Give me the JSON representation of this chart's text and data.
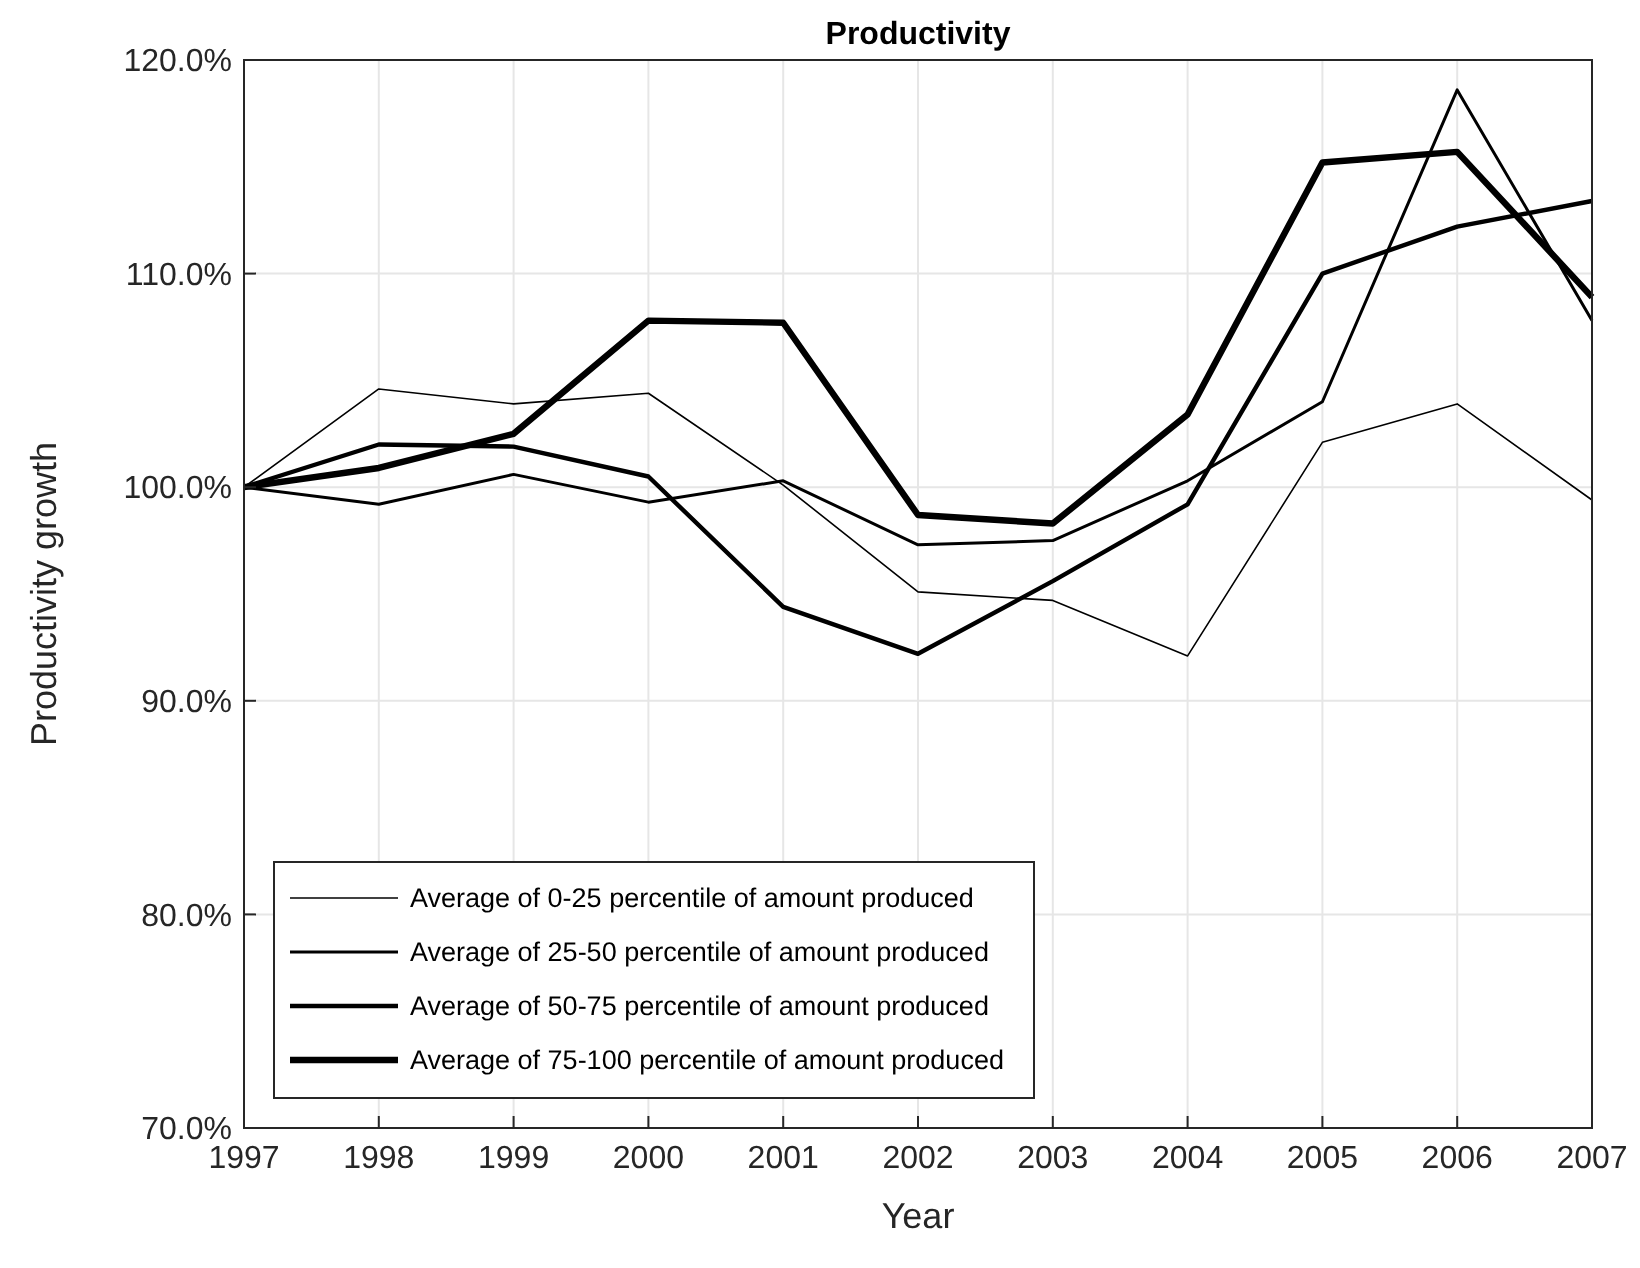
{
  "chart_data": {
    "type": "line",
    "title": "Productivity",
    "xlabel": "Year",
    "ylabel": "Productivity growth",
    "x": [
      1997,
      1998,
      1999,
      2000,
      2001,
      2002,
      2003,
      2004,
      2005,
      2006,
      2007
    ],
    "series": [
      {
        "name": "Average of 0-25 percentile of amount produced",
        "color": "#000000",
        "values": [
          100,
          104.6,
          103.9,
          104.4,
          100.1,
          95.1,
          94.7,
          92.1,
          102.1,
          103.9,
          99.4
        ]
      },
      {
        "name": "Average of 25-50 percentile of amount produced",
        "color": "#000000",
        "values": [
          100,
          99.2,
          100.6,
          99.3,
          100.3,
          97.3,
          97.5,
          100.3,
          104.0,
          118.6,
          107.8
        ]
      },
      {
        "name": "Average of 50-75 percentile of amount produced",
        "color": "#000000",
        "values": [
          100,
          102.0,
          101.9,
          100.5,
          94.4,
          92.2,
          95.6,
          99.2,
          110.0,
          112.2,
          113.4
        ]
      },
      {
        "name": "Average of 75-100 percentile of amount produced",
        "color": "#000000",
        "values": [
          100,
          100.9,
          102.5,
          107.8,
          107.7,
          98.7,
          98.3,
          103.4,
          115.2,
          115.7,
          108.9
        ]
      }
    ],
    "xlim": [
      1997,
      2007
    ],
    "xticks": [
      1997,
      1998,
      1999,
      2000,
      2001,
      2002,
      2003,
      2004,
      2005,
      2006,
      2007
    ],
    "ylim": [
      70,
      120
    ],
    "yticks": [
      {
        "value": 70,
        "label": "70.0%"
      },
      {
        "value": 80,
        "label": "80.0%"
      },
      {
        "value": 90,
        "label": "90.0%"
      },
      {
        "value": 100,
        "label": "100.0%"
      },
      {
        "value": 110,
        "label": "110.0%"
      },
      {
        "value": 120,
        "label": "120.0%"
      }
    ],
    "grid": true,
    "legend": "bottom left",
    "marker": "none",
    "line_style": "solid"
  }
}
